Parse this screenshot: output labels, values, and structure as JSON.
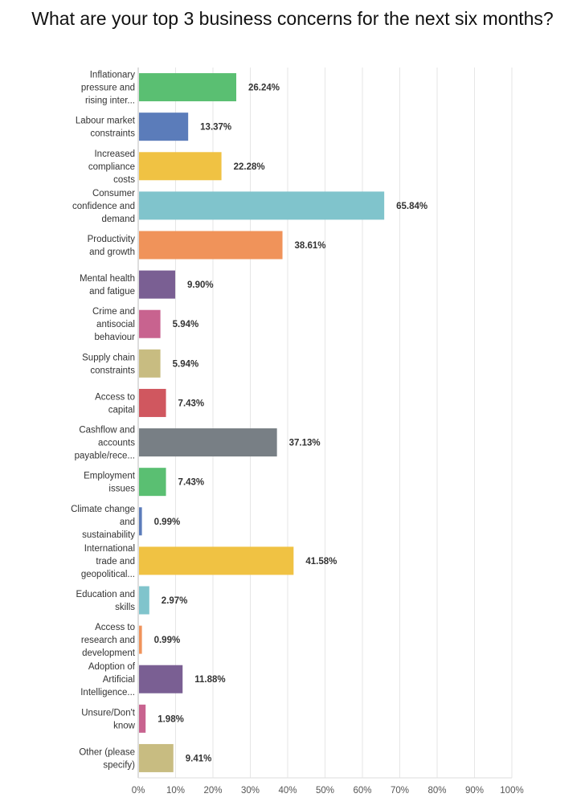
{
  "chart_data": {
    "type": "bar",
    "orientation": "horizontal",
    "title": "What are your top 3 business concerns for the next six months?",
    "xlim": [
      0,
      100
    ],
    "x_ticks": [
      "0%",
      "10%",
      "20%",
      "30%",
      "40%",
      "50%",
      "60%",
      "70%",
      "80%",
      "90%",
      "100%"
    ],
    "grid": "vertical",
    "legend": "none",
    "categories": [
      [
        "Inflationary",
        "pressure and",
        "rising inter..."
      ],
      [
        "Labour market",
        "constraints"
      ],
      [
        "Increased",
        "compliance",
        "costs"
      ],
      [
        "Consumer",
        "confidence and",
        "demand"
      ],
      [
        "Productivity",
        "and growth"
      ],
      [
        "Mental health",
        "and fatigue"
      ],
      [
        "Crime and",
        "antisocial",
        "behaviour"
      ],
      [
        "Supply chain",
        "constraints"
      ],
      [
        "Access to",
        "capital"
      ],
      [
        "Cashflow and",
        "accounts",
        "payable/rece..."
      ],
      [
        "Employment",
        "issues"
      ],
      [
        "Climate change",
        "and",
        "sustainability"
      ],
      [
        "International",
        "trade and",
        "geopolitical..."
      ],
      [
        "Education and",
        "skills"
      ],
      [
        "Access to",
        "research and",
        "development"
      ],
      [
        "Adoption of",
        "Artificial",
        "Intelligence..."
      ],
      [
        "Unsure/Don't",
        "know"
      ],
      [
        "Other (please",
        "specify)"
      ]
    ],
    "values": [
      26.24,
      13.37,
      22.28,
      65.84,
      38.61,
      9.9,
      5.94,
      5.94,
      7.43,
      37.13,
      7.43,
      0.99,
      41.58,
      2.97,
      0.99,
      11.88,
      1.98,
      9.41
    ],
    "value_labels": [
      "26.24%",
      "13.37%",
      "22.28%",
      "65.84%",
      "38.61%",
      "9.90%",
      "5.94%",
      "5.94%",
      "7.43%",
      "37.13%",
      "7.43%",
      "0.99%",
      "41.58%",
      "2.97%",
      "0.99%",
      "11.88%",
      "1.98%",
      "9.41%"
    ],
    "colors": [
      "#5abf72",
      "#5b7cba",
      "#f0c243",
      "#80c4cc",
      "#f0935a",
      "#7a5f93",
      "#c8638f",
      "#c8bc81",
      "#d0575f",
      "#787f85",
      "#5abf72",
      "#5b7cba",
      "#f0c243",
      "#80c4cc",
      "#f0935a",
      "#7a5f93",
      "#c8638f",
      "#c8bc81"
    ]
  }
}
